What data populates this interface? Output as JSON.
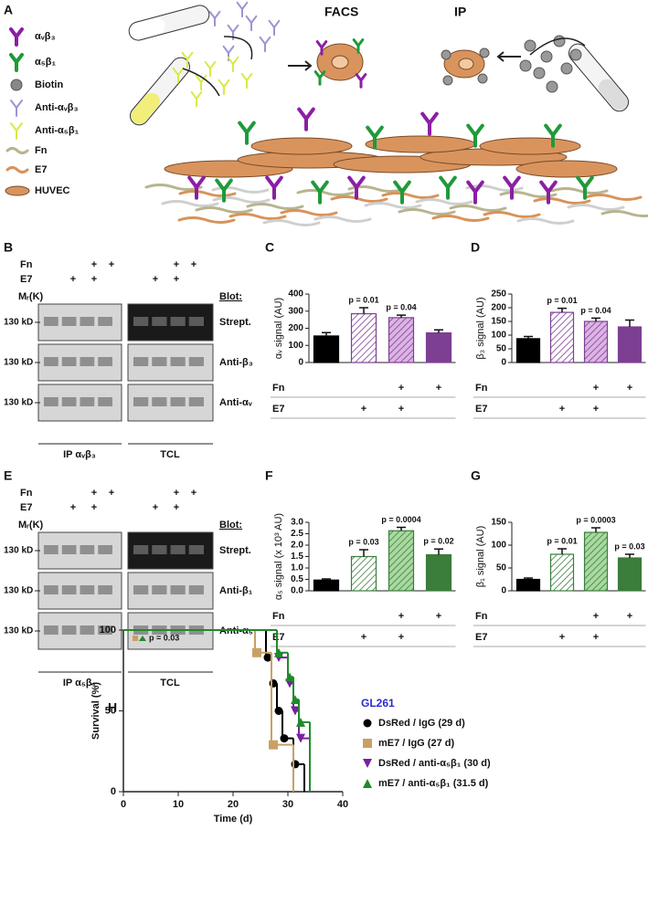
{
  "panel_labels": [
    "A",
    "B",
    "C",
    "D",
    "E",
    "F",
    "G",
    "H"
  ],
  "panel_a": {
    "legend": [
      "αᵥβ₃",
      "α₅β₁",
      "Biotin",
      "Anti-αᵥβ₃",
      "Anti-α₅β₁",
      "Fn",
      "E7",
      "HUVEC"
    ],
    "facs": "FACS",
    "ip": "IP"
  },
  "blots": [
    {
      "fn_label": "Fn",
      "e7_label": "E7",
      "fn": [
        null,
        null,
        "+",
        "+",
        null,
        null,
        "+",
        "+"
      ],
      "e7": [
        null,
        "+",
        "+",
        null,
        null,
        "+",
        "+",
        null
      ],
      "mr": "Mᵣ(K)",
      "blot_label": "Blot:",
      "rows": [
        {
          "marker": "130 kD",
          "label": "Strept."
        },
        {
          "marker": "130 kD",
          "label": "Anti-β₃"
        },
        {
          "marker": "130 kD",
          "label": "Anti-αᵥ"
        }
      ],
      "ip": "IP αᵥβ₃",
      "tcl": "TCL"
    },
    {
      "fn_label": "Fn",
      "e7_label": "E7",
      "fn": [
        null,
        null,
        "+",
        "+",
        null,
        null,
        "+",
        "+"
      ],
      "e7": [
        null,
        "+",
        "+",
        null,
        null,
        "+",
        "+",
        null
      ],
      "mr": "Mᵣ(K)",
      "blot_label": "Blot:",
      "rows": [
        {
          "marker": "130 kD",
          "label": "Strept."
        },
        {
          "marker": "130 kD",
          "label": "Anti-β₁"
        },
        {
          "marker": "130 kD",
          "label": "Anti-α₅"
        }
      ],
      "ip": "IP α₅β₁",
      "tcl": "TCL"
    }
  ],
  "chart_data": [
    {
      "type": "bar",
      "ylabel": "αᵥ signal (AU)",
      "ylim": [
        0,
        400
      ],
      "yticks": [
        0,
        100,
        200,
        300,
        400
      ],
      "values": [
        155,
        285,
        262,
        173
      ],
      "errors": [
        20,
        35,
        15,
        18
      ],
      "colors": [
        "#000000",
        "#ffffff",
        "#dcb4e4",
        "#7d3f92"
      ],
      "hatched": [
        false,
        true,
        true,
        false
      ],
      "hatch_color": "#7d3f92",
      "p_values": [
        null,
        "p = 0.01",
        "p = 0.04",
        null
      ],
      "row_labels": [
        "Fn",
        "E7"
      ],
      "rows": [
        [
          null,
          null,
          "+",
          "+"
        ],
        [
          null,
          "+",
          "+",
          null
        ]
      ]
    },
    {
      "type": "bar",
      "ylabel": "β₃ signal (AU)",
      "ylim": [
        0,
        250
      ],
      "yticks": [
        0,
        50,
        100,
        150,
        200,
        250
      ],
      "values": [
        87,
        183,
        150,
        130
      ],
      "errors": [
        8,
        15,
        12,
        25
      ],
      "colors": [
        "#000000",
        "#ffffff",
        "#dcb4e4",
        "#7d3f92"
      ],
      "hatched": [
        false,
        true,
        true,
        false
      ],
      "hatch_color": "#7d3f92",
      "p_values": [
        null,
        "p = 0.01",
        "p = 0.04",
        null
      ],
      "row_labels": [
        "Fn",
        "E7"
      ],
      "rows": [
        [
          null,
          null,
          "+",
          "+"
        ],
        [
          null,
          "+",
          "+",
          null
        ]
      ]
    },
    {
      "type": "bar",
      "ylabel": "α₅ signal (x 10³ AU)",
      "ylim": [
        0,
        3
      ],
      "yticks": [
        {
          "value": 0,
          "label": "0.0"
        },
        0.5,
        {
          "value": 1,
          "label": "1.0"
        },
        1.5,
        {
          "value": 2,
          "label": "2.0"
        },
        2.5,
        {
          "value": 3,
          "label": "3.0"
        }
      ],
      "values": [
        0.47,
        1.5,
        2.63,
        1.58
      ],
      "errors": [
        0.05,
        0.3,
        0.15,
        0.25
      ],
      "colors": [
        "#000000",
        "#ffffff",
        "#a9d9a0",
        "#3b7d3b"
      ],
      "hatched": [
        false,
        true,
        true,
        false
      ],
      "hatch_color": "#3b7d3b",
      "p_values": [
        null,
        "p = 0.03",
        "p = 0.0004",
        "p = 0.02"
      ],
      "row_labels": [
        "Fn",
        "E7"
      ],
      "rows": [
        [
          null,
          null,
          "+",
          "+"
        ],
        [
          null,
          "+",
          "+",
          null
        ]
      ]
    },
    {
      "type": "bar",
      "ylabel": "β₁ signal (AU)",
      "ylim": [
        0,
        150
      ],
      "yticks": [
        0,
        50,
        100,
        150
      ],
      "values": [
        25,
        80,
        128,
        72
      ],
      "errors": [
        3,
        12,
        10,
        8
      ],
      "colors": [
        "#000000",
        "#ffffff",
        "#a9d9a0",
        "#3b7d3b"
      ],
      "hatched": [
        false,
        true,
        true,
        false
      ],
      "hatch_color": "#3b7d3b",
      "p_values": [
        null,
        "p = 0.01",
        "p = 0.0003",
        "p = 0.03"
      ],
      "row_labels": [
        "Fn",
        "E7"
      ],
      "rows": [
        [
          null,
          null,
          "+",
          "+"
        ],
        [
          null,
          "+",
          "+",
          null
        ]
      ]
    },
    {
      "type": "survival",
      "xlabel": "Time (d)",
      "ylabel": "Survival (%)",
      "xlim": [
        0,
        40
      ],
      "xticks": [
        0,
        10,
        20,
        30,
        40
      ],
      "ylim": [
        0,
        100
      ],
      "yticks": [
        0,
        50,
        100
      ],
      "annotation": "p = 0.03",
      "legend_title": "GL261",
      "series": [
        {
          "name": "DsRed / IgG (29 d)",
          "color": "#000000",
          "marker": "circle",
          "x": [
            0,
            26,
            27,
            28,
            29,
            31,
            33
          ],
          "values": [
            100,
            83,
            67,
            50,
            33,
            17,
            0
          ]
        },
        {
          "name": "mE7 / IgG (27 d)",
          "color": "#c9a064",
          "marker": "square",
          "x": [
            0,
            24,
            27,
            31
          ],
          "values": [
            100,
            86,
            29,
            0
          ]
        },
        {
          "name": "DsRed / anti-α₅β₁ (30 d)",
          "color": "#7a1fa0",
          "marker": "triangle-down",
          "x": [
            0,
            28,
            30,
            31,
            32,
            34
          ],
          "values": [
            100,
            83,
            67,
            50,
            33,
            0
          ]
        },
        {
          "name": "mE7 / anti-α₅β₁ (31.5 d)",
          "color": "#1f8a2a",
          "marker": "triangle-up",
          "x": [
            0,
            28,
            30,
            31,
            32,
            34
          ],
          "values": [
            100,
            86,
            71,
            57,
            43,
            0
          ]
        }
      ]
    }
  ]
}
